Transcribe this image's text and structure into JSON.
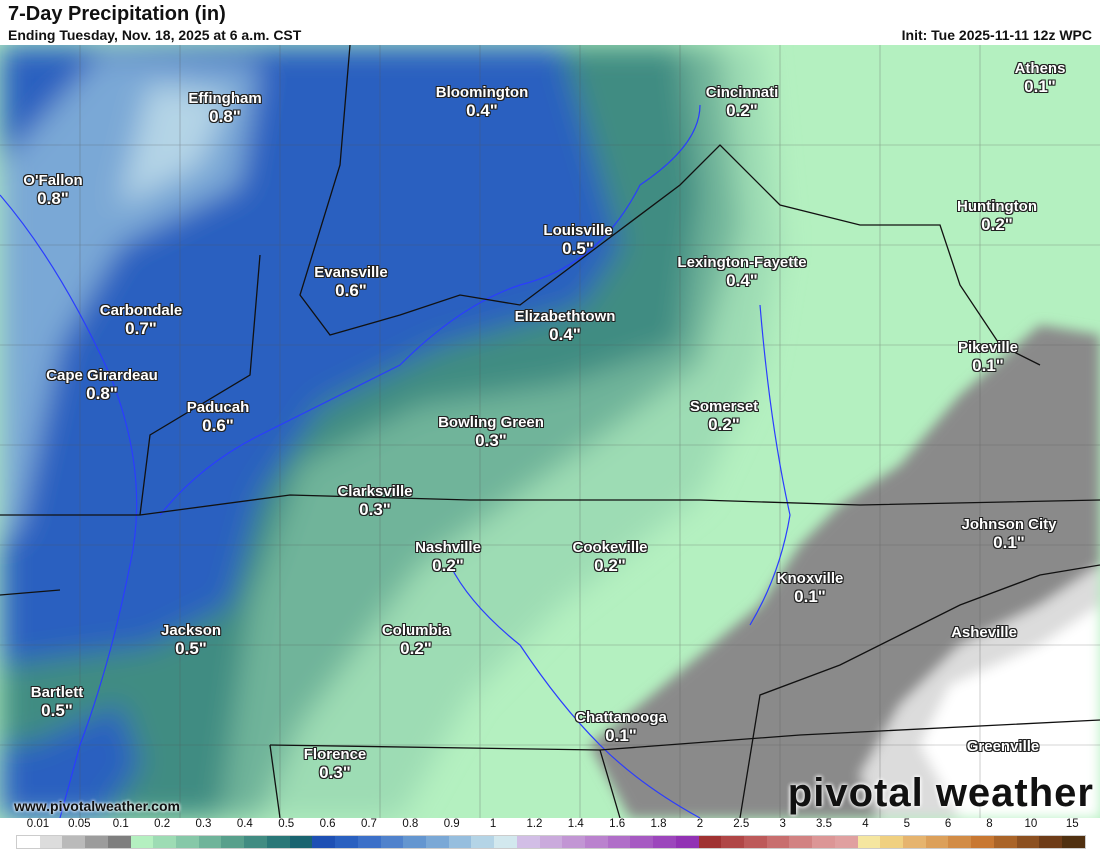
{
  "header": {
    "title": "7-Day Precipitation (in)",
    "subtitle": "Ending Tuesday, Nov. 18, 2025 at 6 a.m. CST",
    "init": "Init: Tue 2025-11-11 12z WPC"
  },
  "map": {
    "cities": [
      {
        "name": "Effingham",
        "value": "0.8\""
      },
      {
        "name": "Bloomington",
        "value": "0.4\""
      },
      {
        "name": "Cincinnati",
        "value": "0.2\""
      },
      {
        "name": "Athens",
        "value": "0.1\""
      },
      {
        "name": "O'Fallon",
        "value": "0.8\""
      },
      {
        "name": "Huntington",
        "value": "0.2\""
      },
      {
        "name": "Louisville",
        "value": "0.5\""
      },
      {
        "name": "Evansville",
        "value": "0.6\""
      },
      {
        "name": "Lexington-Fayette",
        "value": "0.4\""
      },
      {
        "name": "Carbondale",
        "value": "0.7\""
      },
      {
        "name": "Elizabethtown",
        "value": "0.4\""
      },
      {
        "name": "Pikeville",
        "value": "0.1\""
      },
      {
        "name": "Cape Girardeau",
        "value": "0.8\""
      },
      {
        "name": "Paducah",
        "value": "0.6\""
      },
      {
        "name": "Somerset",
        "value": "0.2\""
      },
      {
        "name": "Bowling Green",
        "value": "0.3\""
      },
      {
        "name": "Clarksville",
        "value": "0.3\""
      },
      {
        "name": "Johnson City",
        "value": "0.1\""
      },
      {
        "name": "Nashville",
        "value": "0.2\""
      },
      {
        "name": "Cookeville",
        "value": "0.2\""
      },
      {
        "name": "Knoxville",
        "value": "0.1\""
      },
      {
        "name": "Jackson",
        "value": "0.5\""
      },
      {
        "name": "Columbia",
        "value": "0.2\""
      },
      {
        "name": "Asheville",
        "value": ""
      },
      {
        "name": "Bartlett",
        "value": "0.5\""
      },
      {
        "name": "Chattanooga",
        "value": "0.1\""
      },
      {
        "name": "Greenville",
        "value": ""
      },
      {
        "name": "Florence",
        "value": "0.3\""
      }
    ]
  },
  "footer": {
    "website": "www.pivotalweather.com",
    "brand": "pivotal weather"
  },
  "colorbar": {
    "labels": [
      "0.01",
      "0.05",
      "0.1",
      "0.2",
      "0.3",
      "0.4",
      "0.5",
      "0.6",
      "0.7",
      "0.8",
      "0.9",
      "1",
      "1.2",
      "1.4",
      "1.6",
      "1.8",
      "2",
      "2.5",
      "3",
      "3.5",
      "4",
      "5",
      "6",
      "8",
      "10",
      "15"
    ],
    "colors": [
      "#ffffff",
      "#dcdcdc",
      "#bababa",
      "#9c9c9c",
      "#7e7e7e",
      "#b4f0c0",
      "#9ddcb4",
      "#86c8a8",
      "#6fb49a",
      "#58a08c",
      "#418c82",
      "#2a7878",
      "#1a6470",
      "#1e50b4",
      "#2a60c0",
      "#3c70c8",
      "#5082cc",
      "#6496d0",
      "#7aa8d6",
      "#96bede",
      "#b4d4e6",
      "#d2e8ee",
      "#d2bee6",
      "#caaadc",
      "#c296d4",
      "#ba82ce",
      "#b06ec8",
      "#a65ac2",
      "#9c46bc",
      "#9232b4",
      "#a03232",
      "#b04646",
      "#bd5a5a",
      "#c86e6e",
      "#d28282",
      "#dc9696",
      "#e0a0a0",
      "#f5e6a0",
      "#f0d080",
      "#e6b46e",
      "#dca05a",
      "#d28c46",
      "#c87832",
      "#aa6428",
      "#8c5020",
      "#6e3c18",
      "#503010"
    ]
  }
}
